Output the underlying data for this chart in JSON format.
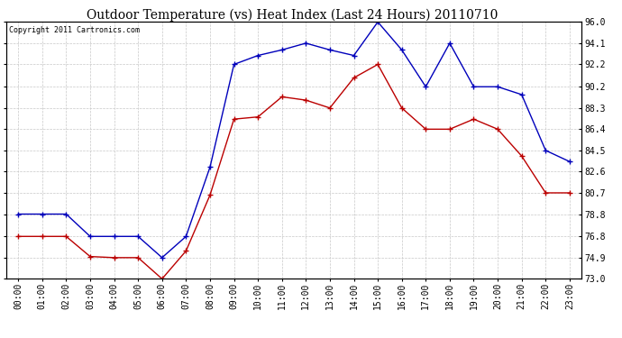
{
  "title": "Outdoor Temperature (vs) Heat Index (Last 24 Hours) 20110710",
  "copyright": "Copyright 2011 Cartronics.com",
  "background_color": "#ffffff",
  "plot_bg_color": "#ffffff",
  "grid_color": "#c8c8c8",
  "x_labels": [
    "00:00",
    "01:00",
    "02:00",
    "03:00",
    "04:00",
    "05:00",
    "06:00",
    "07:00",
    "08:00",
    "09:00",
    "10:00",
    "11:00",
    "12:00",
    "13:00",
    "14:00",
    "15:00",
    "16:00",
    "17:00",
    "18:00",
    "19:00",
    "20:00",
    "21:00",
    "22:00",
    "23:00"
  ],
  "blue_data": [
    78.8,
    78.8,
    78.8,
    76.8,
    76.8,
    76.8,
    74.9,
    76.8,
    83.0,
    92.2,
    93.0,
    93.5,
    94.1,
    93.5,
    93.0,
    96.0,
    93.5,
    90.2,
    94.1,
    90.2,
    90.2,
    89.5,
    84.5,
    83.5
  ],
  "red_data": [
    76.8,
    76.8,
    76.8,
    75.0,
    74.9,
    74.9,
    73.0,
    75.5,
    80.5,
    87.3,
    87.5,
    89.3,
    89.0,
    88.3,
    91.0,
    92.2,
    88.3,
    86.4,
    86.4,
    87.3,
    86.4,
    84.0,
    80.7,
    80.7
  ],
  "ylim": [
    73.0,
    96.0
  ],
  "yticks": [
    73.0,
    74.9,
    76.8,
    78.8,
    80.7,
    82.6,
    84.5,
    86.4,
    88.3,
    90.2,
    92.2,
    94.1,
    96.0
  ],
  "blue_color": "#0000bb",
  "red_color": "#bb0000",
  "title_fontsize": 10,
  "tick_fontsize": 7,
  "copyright_fontsize": 6
}
